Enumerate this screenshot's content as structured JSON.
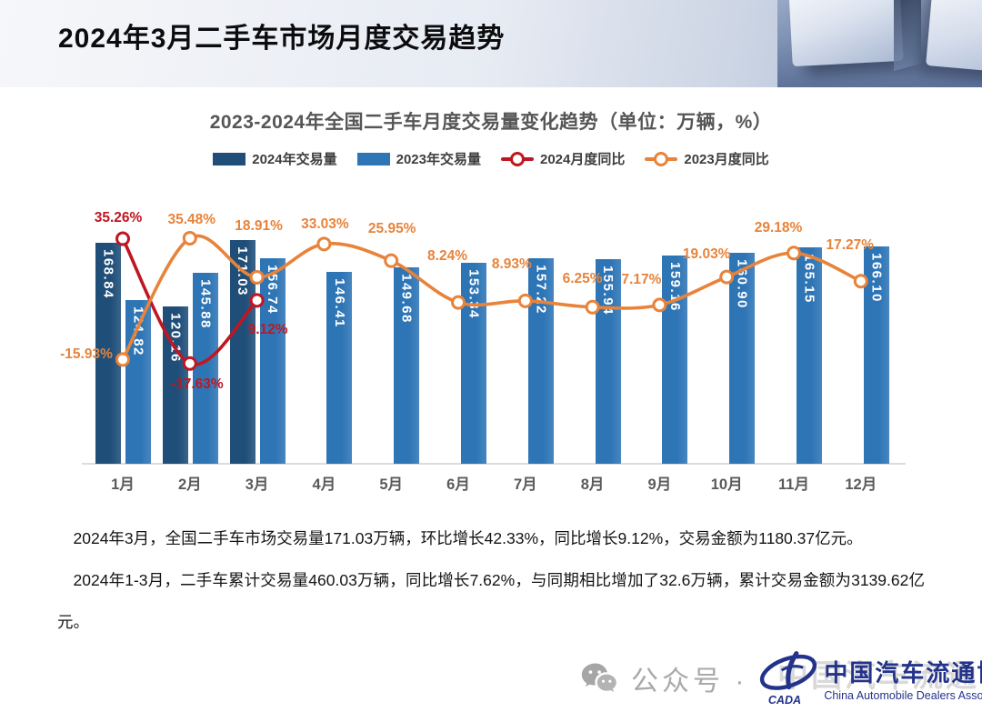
{
  "header": {
    "title": "2024年3月二手车市场月度交易趋势"
  },
  "chart": {
    "title": "2023-2024年全国二手车月度交易量变化趋势（单位：万辆，%）",
    "legend": [
      {
        "label": "2024年交易量",
        "type": "bar",
        "color": "#1f4e79"
      },
      {
        "label": "2023年交易量",
        "type": "bar",
        "color": "#2e75b6"
      },
      {
        "label": "2024月度同比",
        "type": "line",
        "color": "#bf1722"
      },
      {
        "label": "2023月度同比",
        "type": "line",
        "color": "#e8833a"
      }
    ]
  },
  "chart_data": {
    "type": "bar",
    "subtype": "bar+line combo",
    "title": "2023-2024年全国二手车月度交易量变化趋势（单位：万辆，%）",
    "categories": [
      "1月",
      "2月",
      "3月",
      "4月",
      "5月",
      "6月",
      "7月",
      "8月",
      "9月",
      "10月",
      "11月",
      "12月"
    ],
    "series": [
      {
        "name": "2024年交易量",
        "type": "bar",
        "color": "#1f4e79",
        "values": [
          168.84,
          120.16,
          171.03,
          null,
          null,
          null,
          null,
          null,
          null,
          null,
          null,
          null
        ]
      },
      {
        "name": "2023年交易量",
        "type": "bar",
        "color": "#2e75b6",
        "values": [
          124.82,
          145.88,
          156.74,
          146.41,
          149.68,
          153.34,
          157.22,
          155.94,
          159.16,
          160.9,
          165.15,
          166.1
        ]
      },
      {
        "name": "2024月度同比",
        "type": "line",
        "color": "#bf1722",
        "values": [
          35.26,
          -17.63,
          9.12,
          null,
          null,
          null,
          null,
          null,
          null,
          null,
          null,
          null
        ]
      },
      {
        "name": "2023月度同比",
        "type": "line",
        "color": "#e8833a",
        "values": [
          -15.93,
          35.48,
          18.91,
          33.03,
          25.95,
          8.24,
          8.93,
          6.25,
          7.17,
          19.03,
          29.18,
          17.27
        ]
      }
    ],
    "bar_axis": {
      "min": 0,
      "max": 180,
      "visible": false
    },
    "pct_axis": {
      "visible": false
    },
    "legend_position": "top",
    "grid": false,
    "value_label_format": "0.00",
    "pct_label_format": "0.00%"
  },
  "summary": {
    "para1": "2024年3月，全国二手车市场交易量171.03万辆，环比增长42.33%，同比增长9.12%，交易金额为1180.37亿元。",
    "para2": "2024年1-3月，二手车累计交易量460.03万辆，同比增长7.62%，与同期相比增加了32.6万辆，累计交易金额为3139.62亿元。"
  },
  "footer": {
    "wechat_label": "公众号 ·",
    "org_cn": "中国汽车流通协会",
    "org_en": "China Automobile Dealers Association",
    "logo_caption": "CADA",
    "watermark": "中国汽车流通协会"
  }
}
